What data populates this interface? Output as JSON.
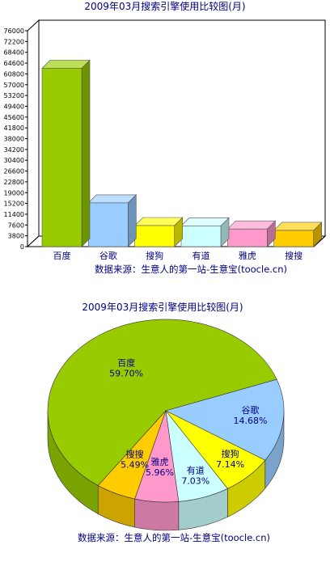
{
  "chart_data": [
    {
      "type": "bar",
      "title": "2009年03月搜索引擎使用比较图(月)",
      "source": "数据来源：生意人的第一站-生意宝(toocle.cn)",
      "y_ticks": [
        "76000",
        "72200",
        "68400",
        "64600",
        "60800",
        "57000",
        "53200",
        "49400",
        "45600",
        "41800",
        "38000",
        "34200",
        "30400",
        "26600",
        "22800",
        "19000",
        "15200",
        "11400",
        "7600",
        "3800",
        "0"
      ],
      "ylim": [
        0,
        76000
      ],
      "grid": false,
      "categories": [
        "百度",
        "谷歌",
        "搜狗",
        "有道",
        "雅虎",
        "搜搜"
      ],
      "values": [
        62800,
        15400,
        7400,
        7300,
        6200,
        5700
      ],
      "colors": [
        "#99cc00",
        "#99ccff",
        "#ffff00",
        "#ccffff",
        "#ff99cc",
        "#ffcc00"
      ]
    },
    {
      "type": "pie",
      "title": "2009年03月搜索引擎使用比较图(月)",
      "source": "数据来源：生意人的第一站-生意宝(toocle.cn)",
      "labels": [
        "百度",
        "谷歌",
        "搜狗",
        "有道",
        "雅虎",
        "搜搜"
      ],
      "values": [
        59.7,
        14.68,
        7.14,
        7.03,
        5.96,
        5.49
      ],
      "value_labels": [
        "59.70%",
        "14.68%",
        "7.14%",
        "7.03%",
        "5.96%",
        "5.49%"
      ],
      "colors": [
        "#99cc00",
        "#99ccff",
        "#ffff00",
        "#ccffff",
        "#ff99cc",
        "#ffcc00"
      ]
    }
  ]
}
